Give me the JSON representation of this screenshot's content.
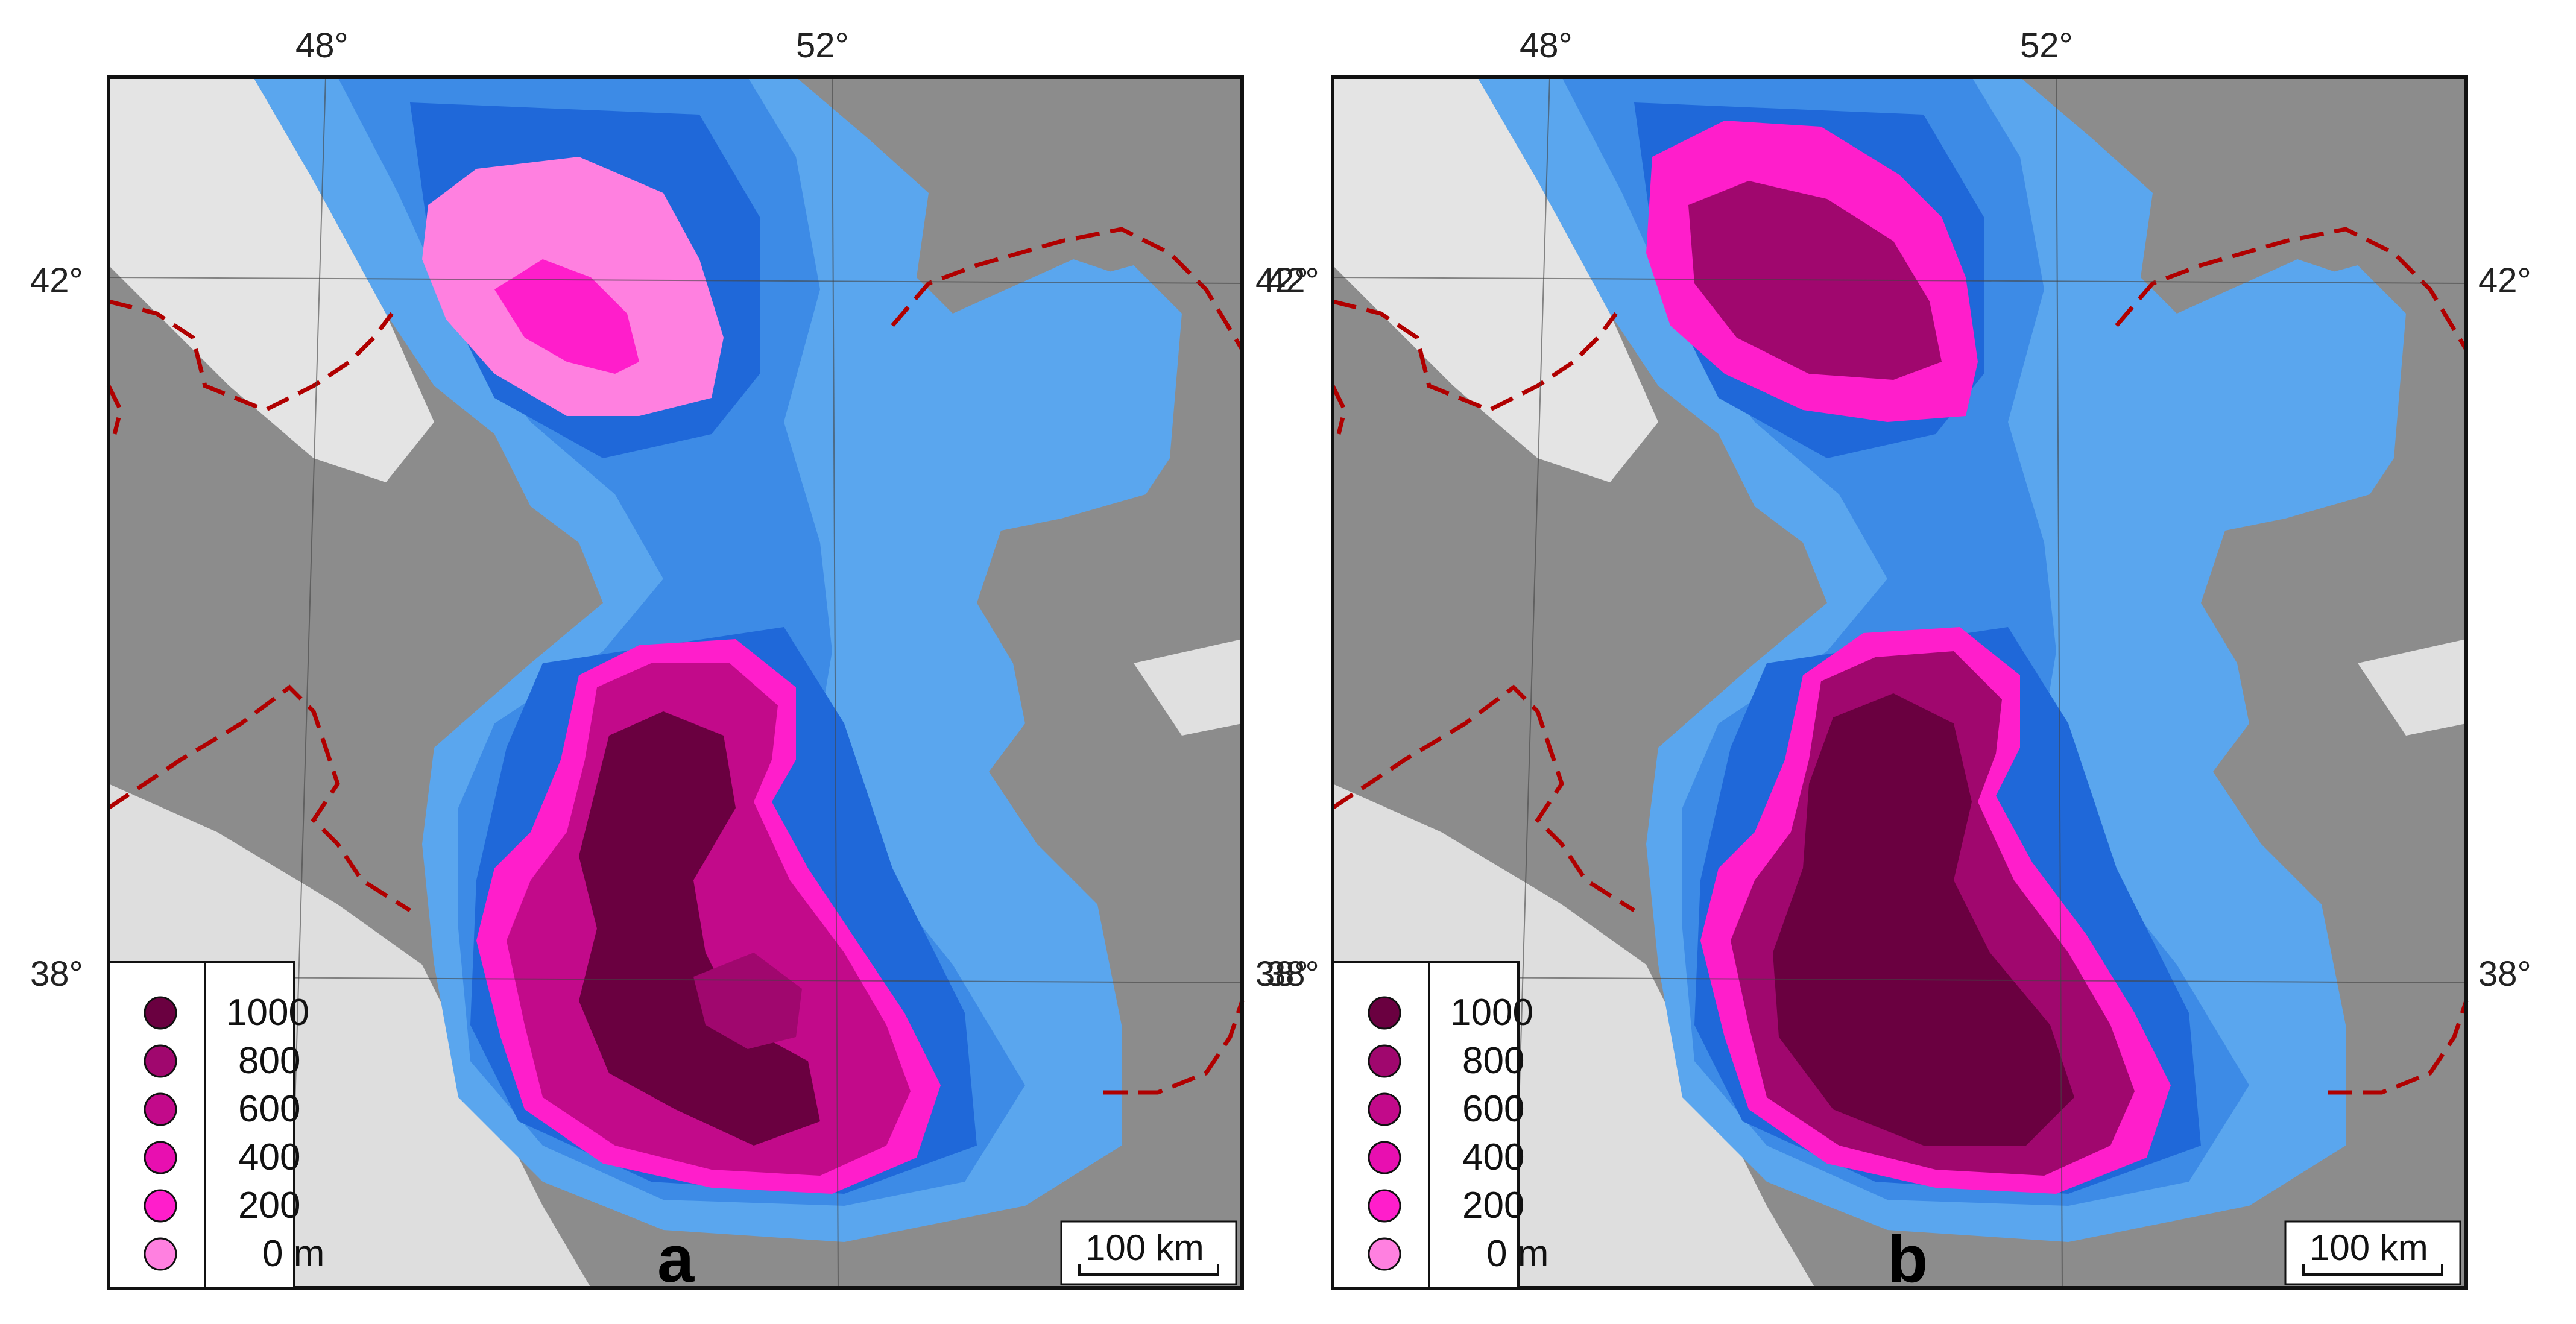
{
  "colors": {
    "land_gray": "#8c8c8c",
    "land_light": "#e6e6e6",
    "sea_shallow": "#5aa6ee",
    "sea_mid": "#3d8be6",
    "sea_deep": "#1f68d9",
    "oil_0": "#ff80e0",
    "oil_200": "#ff1ecb",
    "oil_400": "#e80fb0",
    "oil_600": "#c20a8a",
    "oil_800": "#a0076e",
    "oil_1000": "#6a0040",
    "boundary": "#b00000"
  },
  "panels": [
    {
      "label": "a",
      "lon_labels": [
        "48°",
        "52°"
      ],
      "lat_labels_left": [
        "42°",
        "38°"
      ],
      "lat_labels_right": [
        "42°",
        "38°"
      ],
      "legend": [
        "1000",
        "800",
        "600",
        "400",
        "200",
        "0 m"
      ],
      "scale_label": "100 km"
    },
    {
      "label": "b",
      "lon_labels": [
        "48°",
        "52°"
      ],
      "lat_labels_left": [
        "42°",
        "38°"
      ],
      "lat_labels_right": [
        "42°",
        "38°"
      ],
      "legend": [
        "1000",
        "800",
        "600",
        "400",
        "200",
        "0 m"
      ],
      "scale_label": "100 km"
    }
  ]
}
